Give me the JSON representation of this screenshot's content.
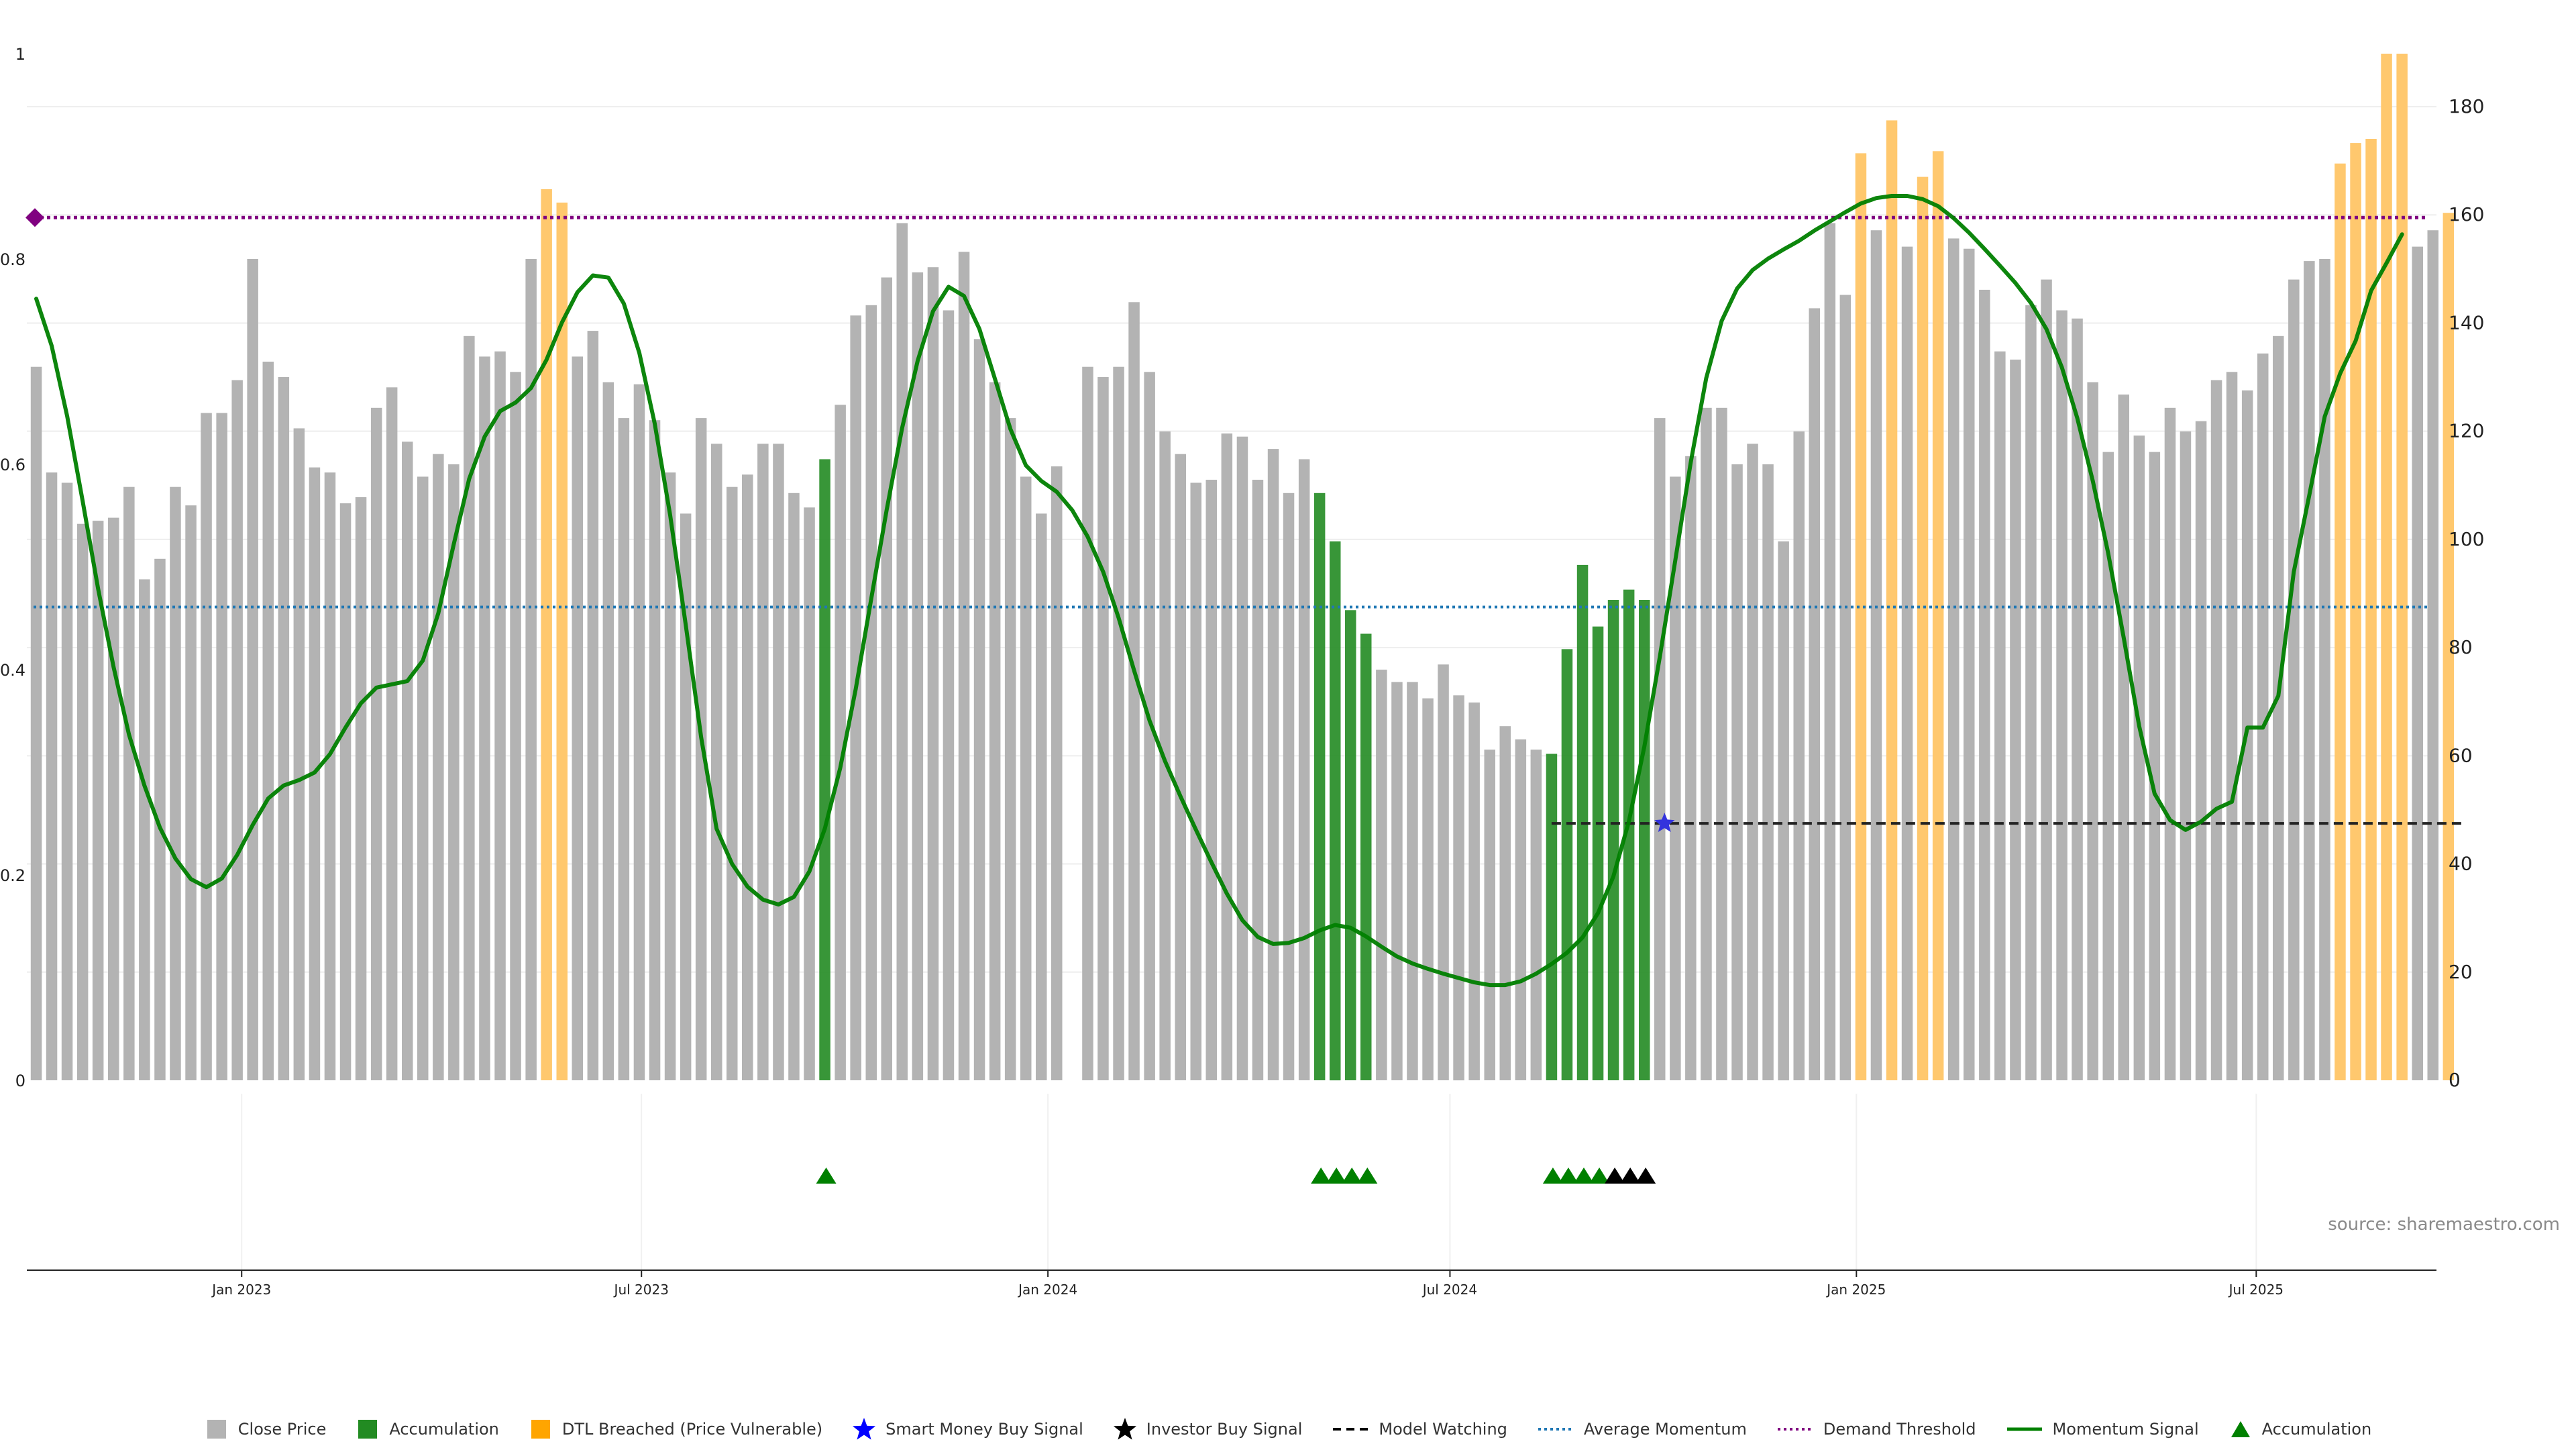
{
  "chart_data": {
    "type": "bar",
    "title": "",
    "x_start": "2022-09-30",
    "x_step_days": 7,
    "x_ticks": [
      "Jan 2023",
      "Jul 2023",
      "Jan 2024",
      "Jul 2024",
      "Jan 2025",
      "Jul 2025"
    ],
    "x_tick_dates": [
      "2023-01-01",
      "2023-07-01",
      "2024-01-01",
      "2024-07-01",
      "2025-01-01",
      "2025-07-01"
    ],
    "left_axis": {
      "ylim": [
        0,
        1
      ],
      "ticks": [
        "0",
        "0.2",
        "0.4",
        "0.6",
        "0.8",
        "1"
      ],
      "tick_values": [
        0,
        0.2,
        0.4,
        0.6,
        0.8,
        1
      ]
    },
    "right_axis": {
      "ylim": [
        0,
        180
      ],
      "ticks": [
        "0",
        "20",
        "40",
        "60",
        "80",
        "100",
        "120",
        "140",
        "160",
        "180"
      ],
      "tick_values": [
        0,
        20,
        40,
        60,
        80,
        100,
        120,
        140,
        160,
        180
      ]
    },
    "bar_status_codes": {
      "c": "Close Price",
      "a": "Accumulation",
      "d": "DTL Breached (Price Vulnerable)",
      "n": "none"
    },
    "bars": [
      [
        0.695,
        "c"
      ],
      [
        0.592,
        "c"
      ],
      [
        0.582,
        "c"
      ],
      [
        0.542,
        "c"
      ],
      [
        0.545,
        "c"
      ],
      [
        0.548,
        "c"
      ],
      [
        0.578,
        "c"
      ],
      [
        0.488,
        "c"
      ],
      [
        0.508,
        "c"
      ],
      [
        0.578,
        "c"
      ],
      [
        0.56,
        "c"
      ],
      [
        0.65,
        "c"
      ],
      [
        0.65,
        "c"
      ],
      [
        0.682,
        "c"
      ],
      [
        0.8,
        "c"
      ],
      [
        0.7,
        "c"
      ],
      [
        0.685,
        "c"
      ],
      [
        0.635,
        "c"
      ],
      [
        0.597,
        "c"
      ],
      [
        0.592,
        "c"
      ],
      [
        0.562,
        "c"
      ],
      [
        0.568,
        "c"
      ],
      [
        0.655,
        "c"
      ],
      [
        0.675,
        "c"
      ],
      [
        0.622,
        "c"
      ],
      [
        0.588,
        "c"
      ],
      [
        0.61,
        "c"
      ],
      [
        0.6,
        "c"
      ],
      [
        0.725,
        "c"
      ],
      [
        0.705,
        "c"
      ],
      [
        0.71,
        "c"
      ],
      [
        0.69,
        "c"
      ],
      [
        0.8,
        "c"
      ],
      [
        0.868,
        "d"
      ],
      [
        0.855,
        "d"
      ],
      [
        0.705,
        "c"
      ],
      [
        0.73,
        "c"
      ],
      [
        0.68,
        "c"
      ],
      [
        0.645,
        "c"
      ],
      [
        0.678,
        "c"
      ],
      [
        0.643,
        "c"
      ],
      [
        0.592,
        "c"
      ],
      [
        0.552,
        "c"
      ],
      [
        0.645,
        "c"
      ],
      [
        0.62,
        "c"
      ],
      [
        0.578,
        "c"
      ],
      [
        0.59,
        "c"
      ],
      [
        0.62,
        "c"
      ],
      [
        0.62,
        "c"
      ],
      [
        0.572,
        "c"
      ],
      [
        0.558,
        "c"
      ],
      [
        0.605,
        "a"
      ],
      [
        0.658,
        "c"
      ],
      [
        0.745,
        "c"
      ],
      [
        0.755,
        "c"
      ],
      [
        0.782,
        "c"
      ],
      [
        0.835,
        "c"
      ],
      [
        0.787,
        "c"
      ],
      [
        0.792,
        "c"
      ],
      [
        0.75,
        "c"
      ],
      [
        0.807,
        "c"
      ],
      [
        0.722,
        "c"
      ],
      [
        0.68,
        "c"
      ],
      [
        0.645,
        "c"
      ],
      [
        0.588,
        "c"
      ],
      [
        0.552,
        "c"
      ],
      [
        0.598,
        "c"
      ],
      [
        0.0,
        "n"
      ],
      [
        0.695,
        "c"
      ],
      [
        0.685,
        "c"
      ],
      [
        0.695,
        "c"
      ],
      [
        0.758,
        "c"
      ],
      [
        0.69,
        "c"
      ],
      [
        0.632,
        "c"
      ],
      [
        0.61,
        "c"
      ],
      [
        0.582,
        "c"
      ],
      [
        0.585,
        "c"
      ],
      [
        0.63,
        "c"
      ],
      [
        0.627,
        "c"
      ],
      [
        0.585,
        "c"
      ],
      [
        0.615,
        "c"
      ],
      [
        0.572,
        "c"
      ],
      [
        0.605,
        "c"
      ],
      [
        0.572,
        "a"
      ],
      [
        0.525,
        "a"
      ],
      [
        0.458,
        "a"
      ],
      [
        0.435,
        "a"
      ],
      [
        0.4,
        "c"
      ],
      [
        0.388,
        "c"
      ],
      [
        0.388,
        "c"
      ],
      [
        0.372,
        "c"
      ],
      [
        0.405,
        "c"
      ],
      [
        0.375,
        "c"
      ],
      [
        0.368,
        "c"
      ],
      [
        0.322,
        "c"
      ],
      [
        0.345,
        "c"
      ],
      [
        0.332,
        "c"
      ],
      [
        0.322,
        "c"
      ],
      [
        0.318,
        "a"
      ],
      [
        0.42,
        "a"
      ],
      [
        0.502,
        "a"
      ],
      [
        0.442,
        "a"
      ],
      [
        0.468,
        "a"
      ],
      [
        0.478,
        "a"
      ],
      [
        0.468,
        "a"
      ],
      [
        0.645,
        "c"
      ],
      [
        0.588,
        "c"
      ],
      [
        0.608,
        "c"
      ],
      [
        0.655,
        "c"
      ],
      [
        0.655,
        "c"
      ],
      [
        0.6,
        "c"
      ],
      [
        0.62,
        "c"
      ],
      [
        0.6,
        "c"
      ],
      [
        0.525,
        "c"
      ],
      [
        0.632,
        "c"
      ],
      [
        0.752,
        "c"
      ],
      [
        0.835,
        "c"
      ],
      [
        0.765,
        "c"
      ],
      [
        0.903,
        "d"
      ],
      [
        0.828,
        "c"
      ],
      [
        0.935,
        "d"
      ],
      [
        0.812,
        "c"
      ],
      [
        0.88,
        "d"
      ],
      [
        0.905,
        "d"
      ],
      [
        0.82,
        "c"
      ],
      [
        0.81,
        "c"
      ],
      [
        0.77,
        "c"
      ],
      [
        0.71,
        "c"
      ],
      [
        0.702,
        "c"
      ],
      [
        0.755,
        "c"
      ],
      [
        0.78,
        "c"
      ],
      [
        0.75,
        "c"
      ],
      [
        0.742,
        "c"
      ],
      [
        0.68,
        "c"
      ],
      [
        0.612,
        "c"
      ],
      [
        0.668,
        "c"
      ],
      [
        0.628,
        "c"
      ],
      [
        0.612,
        "c"
      ],
      [
        0.655,
        "c"
      ],
      [
        0.632,
        "c"
      ],
      [
        0.642,
        "c"
      ],
      [
        0.682,
        "c"
      ],
      [
        0.69,
        "c"
      ],
      [
        0.672,
        "c"
      ],
      [
        0.708,
        "c"
      ],
      [
        0.725,
        "c"
      ],
      [
        0.78,
        "c"
      ],
      [
        0.798,
        "c"
      ],
      [
        0.8,
        "c"
      ],
      [
        0.893,
        "d"
      ],
      [
        0.913,
        "d"
      ],
      [
        0.917,
        "d"
      ],
      [
        1.0,
        "d"
      ],
      [
        1.0,
        "d"
      ],
      [
        0.812,
        "c"
      ],
      [
        0.828,
        "c"
      ],
      [
        0.845,
        "d"
      ]
    ],
    "momentum_signal": [
      144.5,
      135.8,
      122.8,
      107.1,
      90.9,
      76.4,
      63.9,
      54.5,
      46.7,
      41.0,
      37.2,
      35.7,
      37.3,
      41.7,
      47.2,
      52.1,
      54.5,
      55.5,
      56.9,
      60.3,
      65.2,
      69.7,
      72.6,
      73.2,
      73.8,
      77.6,
      86.3,
      99.1,
      111.2,
      119.0,
      123.7,
      125.3,
      128.0,
      133.2,
      140.1,
      145.7,
      148.8,
      148.4,
      143.6,
      134.5,
      121.4,
      104.4,
      84.3,
      63.4,
      46.5,
      40.0,
      35.8,
      33.4,
      32.5,
      33.9,
      38.6,
      46.5,
      57.8,
      72.4,
      89.0,
      105.5,
      120.6,
      133.0,
      142.2,
      146.7,
      145.0,
      138.9,
      129.7,
      120.4,
      113.7,
      110.8,
      108.8,
      105.4,
      100.5,
      94.0,
      85.5,
      75.8,
      66.5,
      59.0,
      52.5,
      46.3,
      40.3,
      34.5,
      29.6,
      26.5,
      25.2,
      25.4,
      26.3,
      27.7,
      28.7,
      28.2,
      26.6,
      24.7,
      22.9,
      21.6,
      20.6,
      19.7,
      18.9,
      18.1,
      17.6,
      17.6,
      18.3,
      19.7,
      21.5,
      23.6,
      26.4,
      30.9,
      37.7,
      47.9,
      61.7,
      78.3,
      96.1,
      114.2,
      129.8,
      140.4,
      146.4,
      149.8,
      151.9,
      153.6,
      155.2,
      157.1,
      158.8,
      160.5,
      162.1,
      163.1,
      163.5,
      163.5,
      162.9,
      161.6,
      159.4,
      156.7,
      153.7,
      150.6,
      147.4,
      143.7,
      138.9,
      131.8,
      122.4,
      110.8,
      97.4,
      81.8,
      65.5,
      53.0,
      48.1,
      46.3,
      47.8,
      50.2,
      51.5,
      65.2,
      65.2,
      71.1,
      94.0,
      108.1,
      122.7,
      130.7,
      136.7,
      146.0,
      151.1,
      156.4
    ],
    "average_momentum": 87.5,
    "demand_threshold": 159.5,
    "model_watching": {
      "value": 47.5,
      "start_index": 98,
      "end_index": 156
    },
    "smart_money_buy_signal": {
      "index": 105,
      "value": 47.5
    },
    "accumulation_markers": [
      51,
      83,
      84,
      85,
      86,
      98,
      99,
      100,
      101
    ],
    "investor_buy_markers": [
      102,
      103,
      104
    ],
    "legend": [
      {
        "label": "Close Price",
        "symbol": "square",
        "color": "#b3b3b3"
      },
      {
        "label": "Accumulation",
        "symbol": "square",
        "color": "#228b22"
      },
      {
        "label": "DTL Breached (Price Vulnerable)",
        "symbol": "square",
        "color": "#ffa500"
      },
      {
        "label": "Smart Money Buy Signal",
        "symbol": "star",
        "color": "#0000ff"
      },
      {
        "label": "Investor Buy Signal",
        "symbol": "star",
        "color": "#000000"
      },
      {
        "label": "Model Watching",
        "symbol": "dashed",
        "color": "#000000"
      },
      {
        "label": "Average Momentum",
        "symbol": "dotted",
        "color": "#1f77b4"
      },
      {
        "label": "Demand Threshold",
        "symbol": "dotted",
        "color": "#800080"
      },
      {
        "label": "Momentum Signal",
        "symbol": "line",
        "color": "#008000"
      },
      {
        "label": "Accumulation",
        "symbol": "triangle",
        "color": "#008000"
      }
    ],
    "source_text": "source: sharemaestro.com"
  },
  "colors": {
    "close_price_bar": "#b3b3b3",
    "accumulation_bar": "#228b22",
    "dtl_bar": "#ffc86e",
    "momentum_signal": "#008000",
    "average_momentum": "#1f77b4",
    "demand_threshold": "#800080",
    "smart_money_star": "#3333dd",
    "model_watching": "#222222",
    "axis_text": "#222222",
    "grid": "#eeeeee"
  }
}
